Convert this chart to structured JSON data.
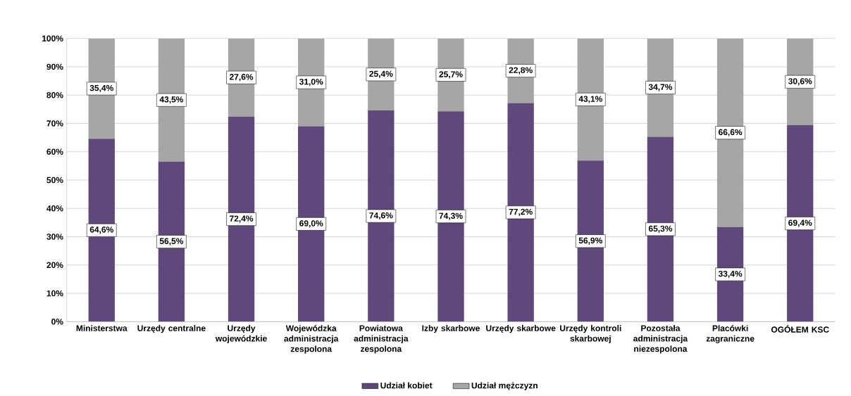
{
  "chart_data": {
    "type": "bar",
    "stacked": true,
    "categories": [
      "Ministerstwa",
      "Urzędy centralne",
      "Urzędy wojewódzkie",
      "Wojewódzka administracja zespolona",
      "Powiatowa administracja zespolona",
      "Izby skarbowe",
      "Urzędy skarbowe",
      "Urzędy kontroli skarbowej",
      "Pozostała administracja niezespolona",
      "Placówki zagraniczne",
      "OGÓŁEM KSC"
    ],
    "series": [
      {
        "name": "Udział kobiet",
        "color": "#5f497a",
        "values": [
          64.6,
          56.5,
          72.4,
          69.0,
          74.6,
          74.3,
          77.2,
          56.9,
          65.3,
          33.4,
          69.4
        ],
        "value_labels": [
          "64,6%",
          "56,5%",
          "72,4%",
          "69,0%",
          "74,6%",
          "74,3%",
          "77,2%",
          "56,9%",
          "65,3%",
          "33,4%",
          "69,4%"
        ]
      },
      {
        "name": "Udział mężczyzn",
        "color": "#a6a6a6",
        "values": [
          35.4,
          43.5,
          27.6,
          31.0,
          25.4,
          25.7,
          22.8,
          43.1,
          34.7,
          66.6,
          30.6
        ],
        "value_labels": [
          "35,4%",
          "43,5%",
          "27,6%",
          "31,0%",
          "25,4%",
          "25,7%",
          "22,8%",
          "43,1%",
          "34,7%",
          "66,6%",
          "30,6%"
        ]
      }
    ],
    "ylim": [
      0,
      100
    ],
    "yticks": [
      {
        "value": 0,
        "label": "0%"
      },
      {
        "value": 10,
        "label": "10%"
      },
      {
        "value": 20,
        "label": "20%"
      },
      {
        "value": 30,
        "label": "30%"
      },
      {
        "value": 40,
        "label": "40%"
      },
      {
        "value": 50,
        "label": "50%"
      },
      {
        "value": 60,
        "label": "60%"
      },
      {
        "value": 70,
        "label": "70%"
      },
      {
        "value": 80,
        "label": "80%"
      },
      {
        "value": 90,
        "label": "90%"
      },
      {
        "value": 100,
        "label": "100%"
      }
    ],
    "grid": "y",
    "legend": "bottom"
  }
}
